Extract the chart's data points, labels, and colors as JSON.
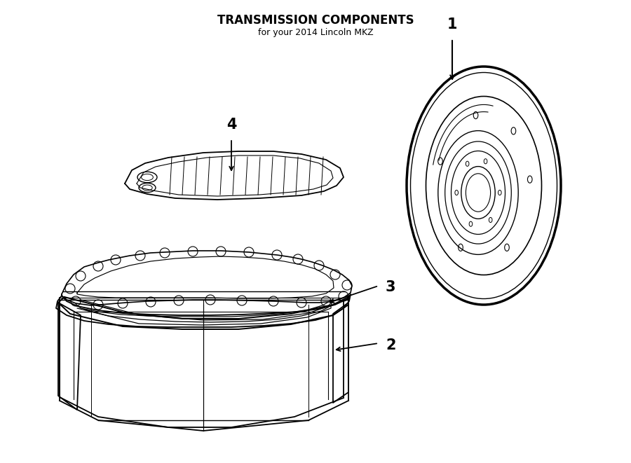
{
  "title": "TRANSMISSION COMPONENTS",
  "subtitle": "for your 2014 Lincoln MKZ",
  "bg_color": "#ffffff",
  "line_color": "#000000",
  "fig_width": 9.0,
  "fig_height": 6.61,
  "dpi": 100
}
